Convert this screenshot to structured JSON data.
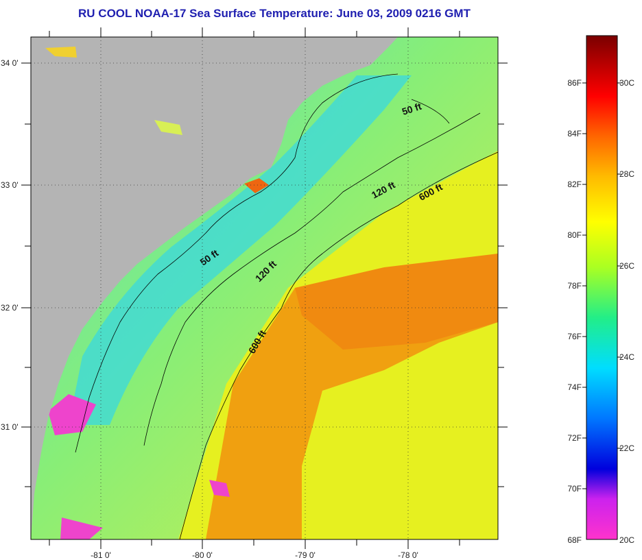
{
  "title": "RU COOL  NOAA-17  Sea Surface Temperature:  June 03, 2009 0216 GMT",
  "lat_ticks": [
    "34 0'",
    "33 0'",
    "32 0'",
    "31 0'"
  ],
  "lon_ticks": [
    "-81 0'",
    "-80 0'",
    "-79 0'",
    "-78 0'"
  ],
  "contours": [
    {
      "label": "50 ft",
      "name": "50ft-north-label"
    },
    {
      "label": "120 ft",
      "name": "120ft-north-label"
    },
    {
      "label": "600 ft",
      "name": "600ft-north-label"
    },
    {
      "label": "50 ft",
      "name": "50ft-south-label"
    },
    {
      "label": "120 ft",
      "name": "120ft-south-label"
    },
    {
      "label": "600 ft",
      "name": "600ft-south-label"
    }
  ],
  "colorbar": {
    "fahrenheit": [
      "86F",
      "84F",
      "82F",
      "80F",
      "78F",
      "76F",
      "74F",
      "72F",
      "70F",
      "68F"
    ],
    "celsius": [
      "30C",
      "28C",
      "26C",
      "24C",
      "22C",
      "20C"
    ]
  },
  "colors": {
    "land": "#b4b4b4",
    "title": "#1f1fb0"
  }
}
